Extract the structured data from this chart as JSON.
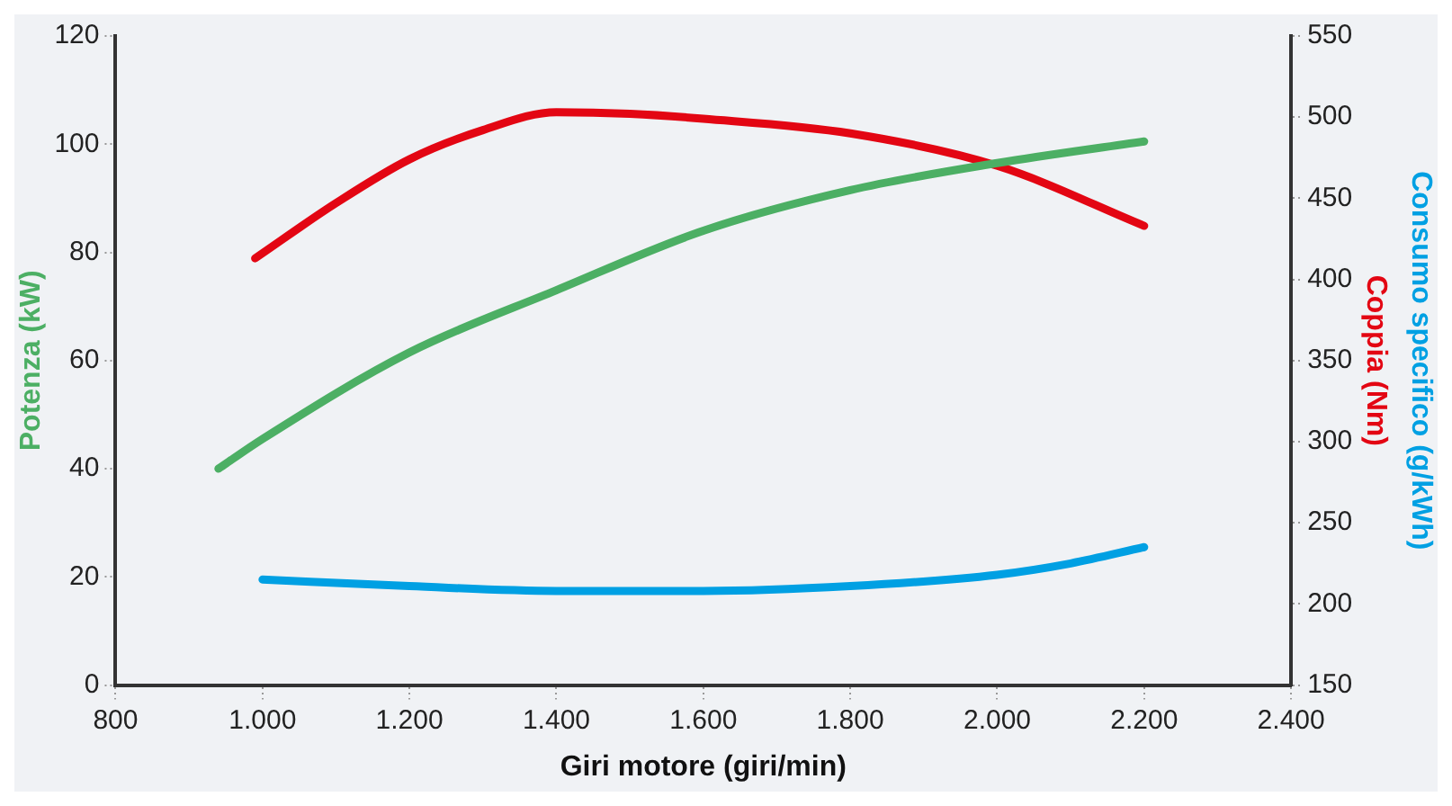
{
  "chart_data": {
    "type": "line",
    "xlabel": "Giri motore (giri/min)",
    "ylabel": "Potenza (kW)",
    "y2label": "Coppia (Nm)",
    "y3label": "Consumo specifico (g/kWh)",
    "xlim": [
      800,
      2400
    ],
    "xticks": [
      800,
      {
        "value": 1000,
        "label": "1.000"
      },
      {
        "value": 1200,
        "label": "1.200"
      },
      {
        "value": 1400,
        "label": "1.400"
      },
      {
        "value": 1600,
        "label": "1.600"
      },
      {
        "value": 1800,
        "label": "1.800"
      },
      {
        "value": 2000,
        "label": "2.000"
      },
      {
        "value": 2200,
        "label": "2.200"
      },
      {
        "value": 2400,
        "label": "2.400"
      }
    ],
    "ylim": [
      0,
      120
    ],
    "yticks": [
      0,
      20,
      40,
      60,
      80,
      100,
      120
    ],
    "y2lim": [
      150,
      550
    ],
    "y2ticks": [
      150,
      200,
      250,
      300,
      350,
      400,
      450,
      500,
      550
    ],
    "grid": false,
    "legend": false,
    "marker": "none",
    "line_style": "solid",
    "series": [
      {
        "color": "#4caf64",
        "x": [
          940,
          1000,
          1200,
          1400,
          1600,
          1800,
          2000,
          2200
        ],
        "values": [
          40,
          45.5,
          61.5,
          73,
          84,
          91.5,
          96.5,
          100.5
        ]
      },
      {
        "color": "#e30613",
        "axis": "y2",
        "x": [
          990,
          1100,
          1200,
          1300,
          1400,
          1500,
          1600,
          1800,
          2000,
          2200
        ],
        "values": [
          413,
          447,
          474,
          492,
          503,
          502,
          499,
          490,
          470,
          433
        ]
      },
      {
        "color": "#00a0e3",
        "axis": "y2",
        "x": [
          1000,
          1200,
          1400,
          1600,
          1800,
          2000,
          2100,
          2200
        ],
        "values": [
          215,
          211,
          208,
          208,
          211,
          218,
          225,
          235
        ]
      }
    ]
  }
}
